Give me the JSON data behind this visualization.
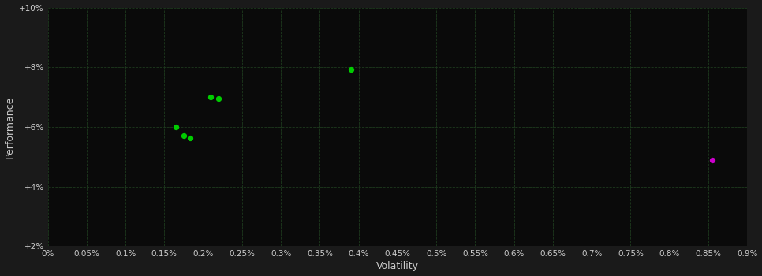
{
  "background_color": "#1a1a1a",
  "plot_bg_color": "#0a0a0a",
  "xlabel": "Volatility",
  "ylabel": "Performance",
  "xlim": [
    0.0,
    0.009
  ],
  "ylim": [
    0.02,
    0.1
  ],
  "x_ticks": [
    0.0,
    0.0005,
    0.001,
    0.0015,
    0.002,
    0.0025,
    0.003,
    0.0035,
    0.004,
    0.0045,
    0.005,
    0.0055,
    0.006,
    0.0065,
    0.007,
    0.0075,
    0.008,
    0.0085,
    0.009
  ],
  "x_tick_labels": [
    "0%",
    "0.05%",
    "0.1%",
    "0.15%",
    "0.2%",
    "0.25%",
    "0.3%",
    "0.35%",
    "0.4%",
    "0.45%",
    "0.5%",
    "0.55%",
    "0.6%",
    "0.65%",
    "0.7%",
    "0.75%",
    "0.8%",
    "0.85%",
    "0.9%"
  ],
  "y_ticks": [
    0.02,
    0.04,
    0.06,
    0.08,
    0.1
  ],
  "y_tick_labels": [
    "+2%",
    "+4%",
    "+6%",
    "+8%",
    "+10%"
  ],
  "green_points": [
    [
      0.0021,
      0.07
    ],
    [
      0.0022,
      0.0695
    ],
    [
      0.00165,
      0.06
    ],
    [
      0.00175,
      0.0572
    ],
    [
      0.00183,
      0.0562
    ],
    [
      0.0039,
      0.0792
    ]
  ],
  "magenta_points": [
    [
      0.00855,
      0.049
    ]
  ],
  "green_color": "#00cc00",
  "magenta_color": "#cc00cc",
  "point_size": 18,
  "tick_color": "#cccccc",
  "label_color": "#cccccc",
  "grid_color": "#1e3a1e",
  "tick_fontsize": 7.5,
  "label_fontsize": 9
}
